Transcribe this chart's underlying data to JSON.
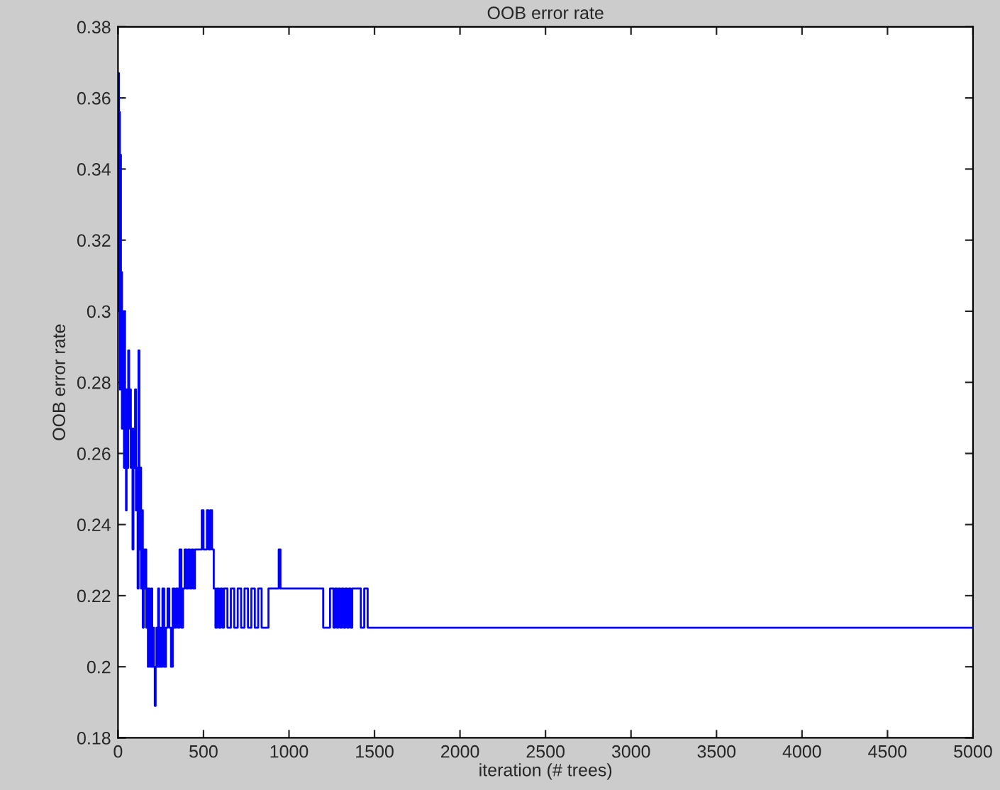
{
  "chart_data": {
    "type": "step",
    "title": "OOB error rate",
    "xlabel": "iteration (# trees)",
    "ylabel": "OOB error rate",
    "xlim": [
      0,
      5000
    ],
    "ylim": [
      0.18,
      0.38
    ],
    "xticks": [
      0,
      500,
      1000,
      1500,
      2000,
      2500,
      3000,
      3500,
      4000,
      4500,
      5000
    ],
    "yticks": [
      0.18,
      0.2,
      0.22,
      0.24,
      0.26,
      0.28,
      0.3,
      0.32,
      0.34,
      0.36,
      0.38
    ],
    "grid": false,
    "legend": false,
    "marker": "none",
    "line_style": "solid",
    "series": [
      {
        "color": "#0000ff",
        "x": [
          1,
          5,
          8,
          11,
          14,
          17,
          20,
          23,
          26,
          29,
          32,
          35,
          38,
          41,
          44,
          47,
          50,
          55,
          60,
          65,
          70,
          75,
          80,
          85,
          90,
          95,
          100,
          105,
          110,
          115,
          120,
          125,
          130,
          135,
          140,
          145,
          150,
          155,
          160,
          165,
          170,
          175,
          180,
          185,
          190,
          195,
          200,
          205,
          210,
          215,
          220,
          225,
          230,
          235,
          240,
          245,
          250,
          260,
          270,
          280,
          290,
          300,
          310,
          320,
          330,
          340,
          350,
          360,
          370,
          380,
          390,
          400,
          410,
          420,
          430,
          440,
          450,
          460,
          470,
          480,
          490,
          500,
          520,
          530,
          540,
          550,
          560,
          570,
          580,
          590,
          600,
          610,
          620,
          640,
          660,
          680,
          700,
          720,
          740,
          760,
          780,
          800,
          820,
          840,
          860,
          880,
          900,
          940,
          950,
          960,
          970,
          1000,
          1100,
          1200,
          1240,
          1260,
          1270,
          1280,
          1290,
          1300,
          1310,
          1320,
          1330,
          1340,
          1350,
          1360,
          1370,
          1400,
          1420,
          1440,
          1460,
          1480,
          5000
        ],
        "values": [
          0.367,
          0.3,
          0.356,
          0.278,
          0.344,
          0.289,
          0.311,
          0.267,
          0.3,
          0.278,
          0.289,
          0.256,
          0.3,
          0.267,
          0.278,
          0.244,
          0.278,
          0.256,
          0.289,
          0.267,
          0.278,
          0.256,
          0.267,
          0.233,
          0.267,
          0.256,
          0.278,
          0.244,
          0.256,
          0.222,
          0.289,
          0.233,
          0.256,
          0.222,
          0.244,
          0.211,
          0.233,
          0.222,
          0.233,
          0.211,
          0.222,
          0.2,
          0.222,
          0.211,
          0.2,
          0.222,
          0.2,
          0.211,
          0.2,
          0.189,
          0.2,
          0.211,
          0.2,
          0.222,
          0.2,
          0.211,
          0.2,
          0.222,
          0.2,
          0.211,
          0.222,
          0.211,
          0.2,
          0.222,
          0.211,
          0.222,
          0.211,
          0.233,
          0.211,
          0.222,
          0.233,
          0.222,
          0.233,
          0.222,
          0.233,
          0.222,
          0.233,
          0.233,
          0.233,
          0.233,
          0.244,
          0.233,
          0.244,
          0.233,
          0.244,
          0.233,
          0.222,
          0.211,
          0.222,
          0.211,
          0.222,
          0.211,
          0.222,
          0.211,
          0.222,
          0.211,
          0.222,
          0.211,
          0.222,
          0.211,
          0.222,
          0.211,
          0.222,
          0.211,
          0.211,
          0.222,
          0.222,
          0.233,
          0.222,
          0.222,
          0.222,
          0.222,
          0.222,
          0.211,
          0.222,
          0.211,
          0.222,
          0.211,
          0.222,
          0.211,
          0.222,
          0.211,
          0.222,
          0.211,
          0.222,
          0.211,
          0.222,
          0.222,
          0.211,
          0.222,
          0.211,
          0.211,
          0.211
        ]
      }
    ]
  }
}
